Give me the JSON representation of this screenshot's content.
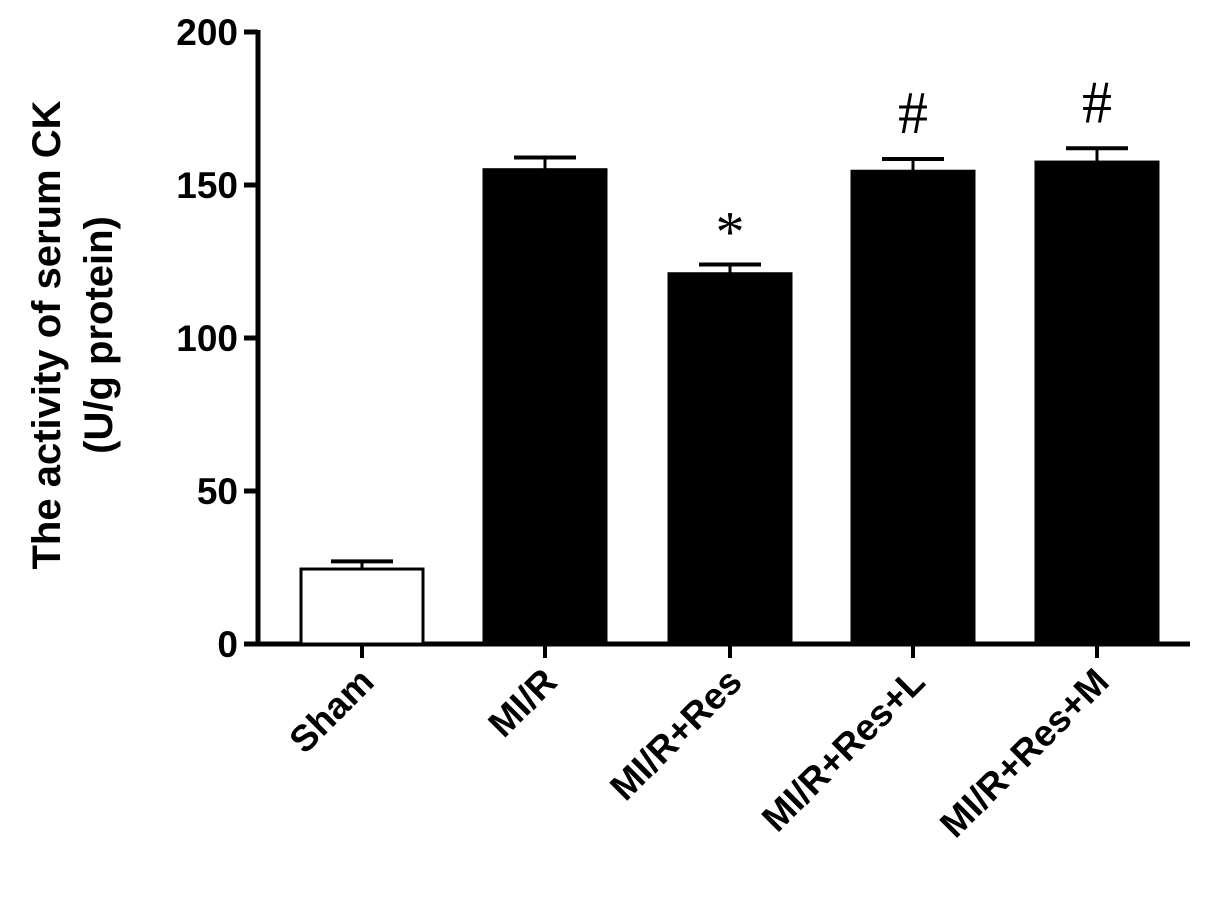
{
  "chart_data": {
    "type": "bar",
    "title": "",
    "xlabel": "",
    "ylabel": [
      "The activity of serum CK",
      "(U/g protein)"
    ],
    "ylim": [
      0,
      200
    ],
    "yticks": [
      0,
      50,
      100,
      150,
      200
    ],
    "grid": false,
    "categories": [
      "Sham",
      "MI/R",
      "MI/R+Res",
      "MI/R+Res+L",
      "MI/R+Res+M"
    ],
    "values": [
      24.5,
      155,
      121,
      154.5,
      157.5
    ],
    "errors": [
      2.5,
      4,
      3,
      4,
      4.5
    ],
    "bar_colors": [
      "#ffffff",
      "#000000",
      "#000000",
      "#000000",
      "#000000"
    ],
    "annotations": [
      "",
      "",
      "*",
      "#",
      "#"
    ]
  }
}
